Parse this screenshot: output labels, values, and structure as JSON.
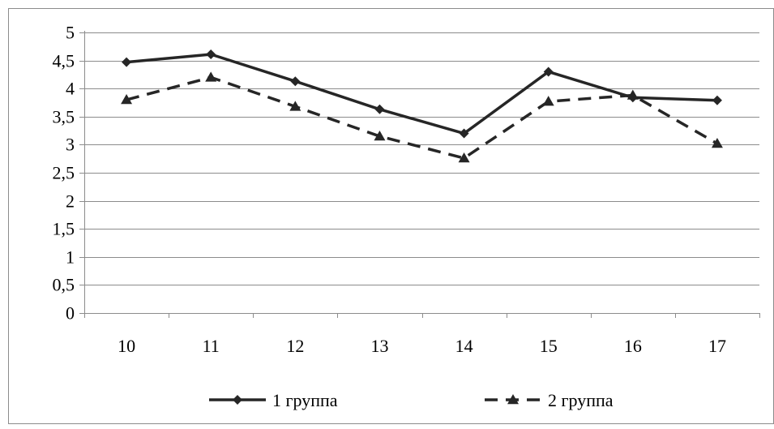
{
  "chart_data": {
    "type": "line",
    "categories": [
      "10",
      "11",
      "12",
      "13",
      "14",
      "15",
      "16",
      "17"
    ],
    "y_ticks": [
      "0",
      "0,5",
      "1",
      "1,5",
      "2",
      "2,5",
      "3",
      "3,5",
      "4",
      "4,5",
      "5"
    ],
    "ylim": [
      0,
      5
    ],
    "grid": "horizontal",
    "legend_position": "bottom",
    "series": [
      {
        "name": "1 группа",
        "values": [
          4.47,
          4.61,
          4.13,
          3.63,
          3.2,
          4.3,
          3.84,
          3.79
        ],
        "color": "#262626",
        "line_style": "solid",
        "marker": "diamond"
      },
      {
        "name": "2 группа",
        "values": [
          3.8,
          4.2,
          3.68,
          3.15,
          2.76,
          3.77,
          3.88,
          3.02
        ],
        "color": "#262626",
        "line_style": "dashed",
        "marker": "triangle"
      }
    ]
  }
}
